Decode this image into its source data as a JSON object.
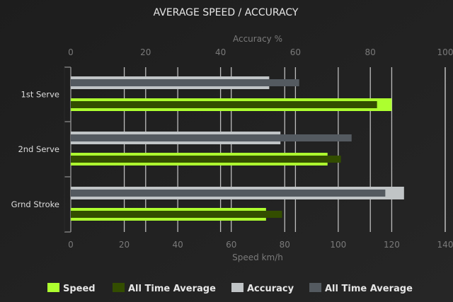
{
  "chart_data": {
    "type": "bar",
    "orientation": "horizontal",
    "title": "AVERAGE SPEED / ACCURACY",
    "categories": [
      "1st Serve",
      "2nd Serve",
      "Grnd Stroke"
    ],
    "top_axis": {
      "label": "Accuracy %",
      "range": [
        0,
        100
      ],
      "ticks": [
        "0",
        "20",
        "40",
        "60",
        "80",
        "100"
      ]
    },
    "bottom_axis": {
      "label": "Speed km/h",
      "range": [
        0,
        140
      ],
      "ticks": [
        "0",
        "20",
        "40",
        "60",
        "80",
        "100",
        "120",
        "140"
      ]
    },
    "grid": true,
    "legend_position": "bottom",
    "series": [
      {
        "name": "Speed",
        "axis": "bottom",
        "color": "#adff2f",
        "values": [
          120,
          96,
          73
        ]
      },
      {
        "name": "All Time Average",
        "axis": "bottom",
        "color": "#334d00",
        "values": [
          114.5,
          101,
          79
        ]
      },
      {
        "name": "Accuracy",
        "axis": "top",
        "color": "#c0c4c6",
        "values": [
          53,
          56,
          89
        ]
      },
      {
        "name": "All Time Average",
        "axis": "top",
        "color": "#545a60",
        "values": [
          61,
          75,
          84
        ]
      }
    ]
  }
}
